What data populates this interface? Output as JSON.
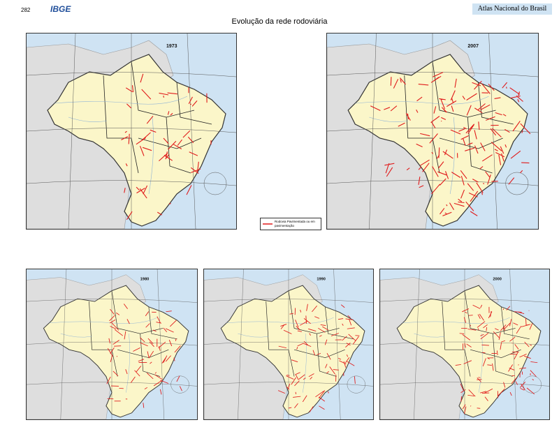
{
  "header": {
    "page_number": "282",
    "logo": "IBGE",
    "atlas": "Atlas Nacional do Brasil"
  },
  "title": "Evolução da rede rodoviária",
  "maps": [
    {
      "year": "1973"
    },
    {
      "year": "2007"
    },
    {
      "year": "1980"
    },
    {
      "year": "1990"
    },
    {
      "year": "2000"
    }
  ],
  "legend": {
    "label": "Rodovia Pavimentada ou em pavimentação"
  }
}
